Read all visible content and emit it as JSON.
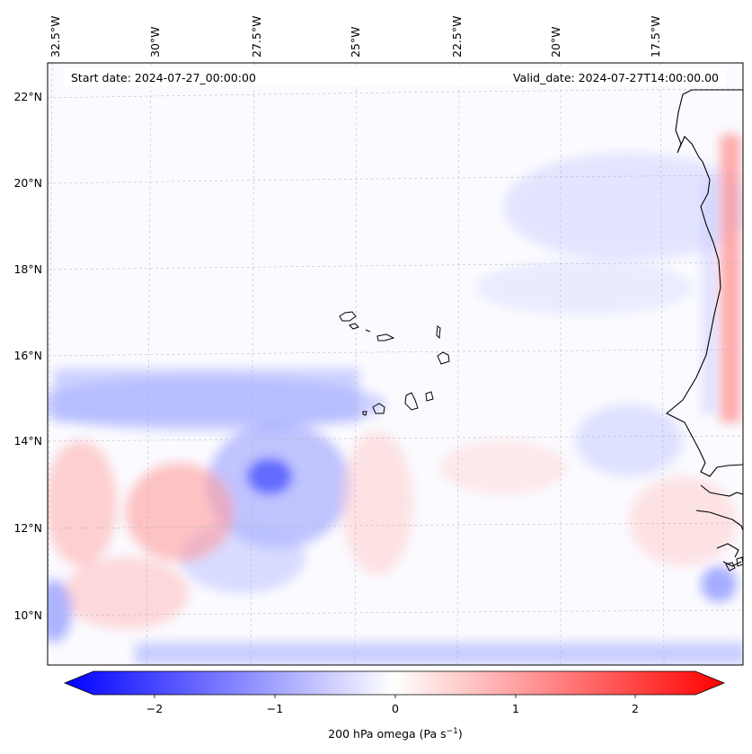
{
  "map": {
    "start_date": "Start date: 2024-07-27_00:00:00",
    "valid_date": "Valid_date: 2024-07-27T14:00:00.00",
    "lon_labels": [
      "32.5°W",
      "30°W",
      "27.5°W",
      "25°W",
      "22.5°W",
      "20°W",
      "17.5°W"
    ],
    "lat_labels": [
      "22°N",
      "20°N",
      "18°N",
      "16°N",
      "14°N",
      "12°N",
      "10°N"
    ],
    "variable": "200 hPa omega",
    "colorbar": {
      "label": "200 hPa omega (Pa s",
      "label_sup": "−1",
      "label_end": ")",
      "ticks": [
        "−2",
        "−1",
        "0",
        "1",
        "2"
      ],
      "colors": {
        "min": "#0000ff",
        "mid": "#ffffff",
        "max": "#ff0000"
      }
    }
  }
}
